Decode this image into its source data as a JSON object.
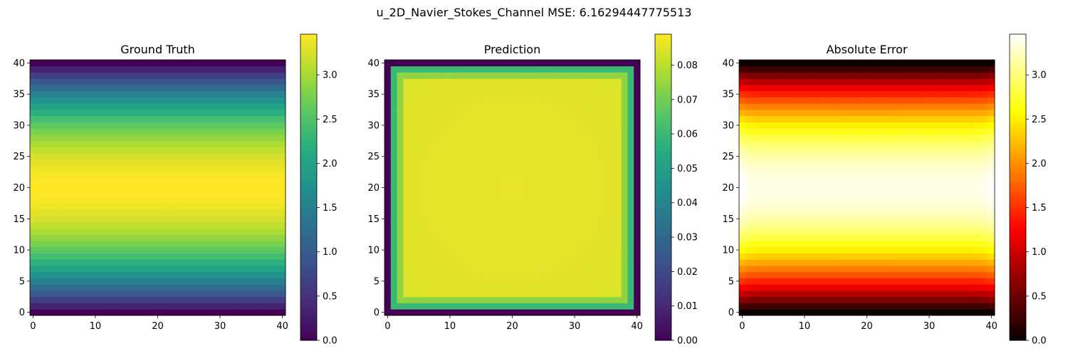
{
  "suptitle": "u_2D_Navier_Stokes_Channel MSE: 6.16294447775513",
  "chart_data": [
    {
      "type": "heatmap",
      "title": "Ground Truth",
      "colormap": "viridis",
      "grid_size": 41,
      "x_ticks": [
        0,
        10,
        20,
        30,
        40
      ],
      "y_ticks": [
        0,
        5,
        10,
        15,
        20,
        25,
        30,
        35,
        40
      ],
      "x_range": [
        -0.5,
        40.5
      ],
      "y_range": [
        -0.5,
        40.5
      ],
      "color_range": [
        0,
        3.46
      ],
      "colorbar_ticks": [
        "0.0",
        "0.5",
        "1.0",
        "1.5",
        "2.0",
        "2.5",
        "3.0"
      ],
      "colorbar_tick_values": [
        0,
        0.5,
        1.0,
        1.5,
        2.0,
        2.5,
        3.0
      ],
      "field": "parabolic_channel_profile",
      "max_value": 3.46
    },
    {
      "type": "heatmap",
      "title": "Prediction",
      "colormap": "viridis",
      "grid_size": 41,
      "x_ticks": [
        0,
        10,
        20,
        30,
        40
      ],
      "y_ticks": [
        0,
        5,
        10,
        15,
        20,
        25,
        30,
        35,
        40
      ],
      "x_range": [
        -0.5,
        40.5
      ],
      "y_range": [
        -0.5,
        40.5
      ],
      "color_range": [
        0,
        0.089
      ],
      "colorbar_ticks": [
        "0.00",
        "0.01",
        "0.02",
        "0.03",
        "0.04",
        "0.05",
        "0.06",
        "0.07",
        "0.08"
      ],
      "colorbar_tick_values": [
        0,
        0.01,
        0.02,
        0.03,
        0.04,
        0.05,
        0.06,
        0.07,
        0.08
      ],
      "field": "near_uniform_with_zero_boundary",
      "interior_value": 0.086,
      "edge_ring_value": 0.06,
      "second_ring_value": 0.074,
      "boundary_value": 0.0
    },
    {
      "type": "heatmap",
      "title": "Absolute Error",
      "colormap": "hot",
      "grid_size": 41,
      "x_ticks": [
        0,
        10,
        20,
        30,
        40
      ],
      "y_ticks": [
        0,
        5,
        10,
        15,
        20,
        25,
        30,
        35,
        40
      ],
      "x_range": [
        -0.5,
        40.5
      ],
      "y_range": [
        -0.5,
        40.5
      ],
      "color_range": [
        0,
        3.46
      ],
      "colorbar_ticks": [
        "0.0",
        "0.5",
        "1.0",
        "1.5",
        "2.0",
        "2.5",
        "3.0"
      ],
      "colorbar_tick_values": [
        0,
        0.5,
        1.0,
        1.5,
        2.0,
        2.5,
        3.0
      ],
      "field": "abs_difference",
      "max_value": 3.46
    }
  ]
}
